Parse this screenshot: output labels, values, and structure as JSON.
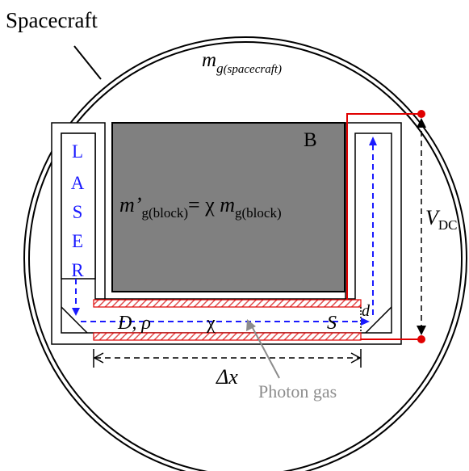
{
  "diagram": {
    "spacecraft_label": "Spacecraft",
    "mass_spacecraft": {
      "m": "m",
      "sub": "g",
      "paren": "(spacecraft)"
    },
    "block_label": "B",
    "block_formula": {
      "m_prime": "m’",
      "sub1": "g(block)",
      "eq": "= χ ",
      "m": "m",
      "sub2": "g(block)"
    },
    "laser_letters": [
      "L",
      "A",
      "S",
      "E",
      "R"
    ],
    "channel_label": "D, ρ",
    "chi_label": "χ",
    "s_label": "S",
    "d_label": "d",
    "voltage": {
      "v": "V",
      "sub": "DC"
    },
    "delta_x": "Δx",
    "photon_gas_label": "Photon gas",
    "colors": {
      "block_fill": "#808080",
      "laser_blue": "#1a1aff",
      "circuit_red": "#e00000",
      "hatch_red": "#e05050",
      "annotation_gray": "#8c8c8c",
      "outline": "#000000"
    }
  }
}
